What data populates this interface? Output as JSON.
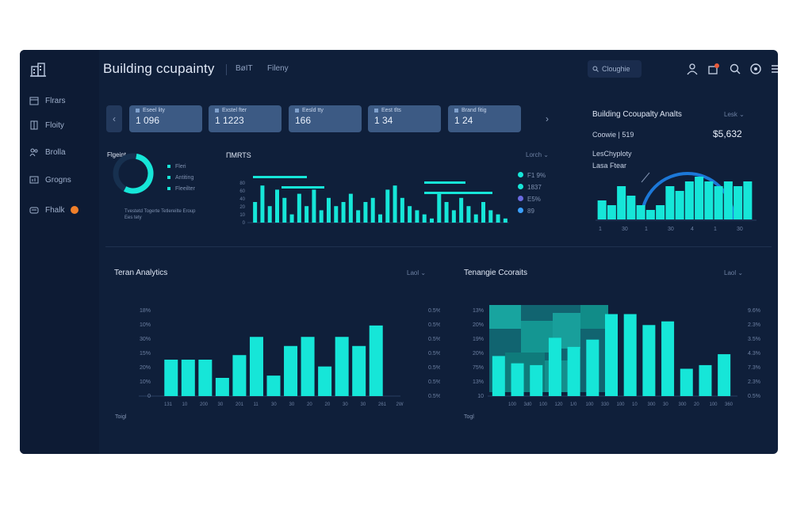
{
  "app": {
    "title": "Building ccupainty",
    "nav_links": [
      "BøIT",
      "Fileny"
    ],
    "search_placeholder": "Cloughie"
  },
  "sidebar": {
    "items": [
      {
        "label": "Flrars",
        "icon": "calendar-icon"
      },
      {
        "label": "Floity",
        "icon": "building-icon"
      },
      {
        "label": "Brolla",
        "icon": "people-icon"
      },
      {
        "label": "Grogns",
        "icon": "chart-icon"
      },
      {
        "label": "Fhalk",
        "icon": "inbox-icon",
        "badge": true
      }
    ]
  },
  "kpis": [
    {
      "label": "Eseel lity",
      "value": "1 096"
    },
    {
      "label": "Exstel fter",
      "value": "1 1223"
    },
    {
      "label": "Eesld tty",
      "value": "166"
    },
    {
      "label": "Eest tlts",
      "value": "1 34"
    },
    {
      "label": "Brand fitig",
      "value": "1 24"
    }
  ],
  "donut": {
    "title": "Flgeint",
    "value_fraction": 0.55,
    "legend": [
      "Fleri",
      "Antiting",
      "Fleeilter"
    ],
    "caption": "Tvestetd Togerte Tetlereilte Eroup Ees tety"
  },
  "mini_chart": {
    "title": "ПMRTS",
    "dropdown": "Lorch",
    "legend": [
      "F1 9%",
      "1837",
      "E5%",
      "89"
    ]
  },
  "analytics": {
    "title": "Building Ccoupalty Analts",
    "dropdown": "Lesk",
    "subtitle": "Coowie | 519",
    "value": "$5,632",
    "annotation": [
      "LesChyploty",
      "Lasa Ftear"
    ]
  },
  "tenant": {
    "title": "Teran Analytics",
    "dropdown": "Laol",
    "y_left": [
      "0",
      "10%",
      "20%",
      "15%",
      "30%",
      "10%",
      "18%"
    ],
    "y_right": [
      "0.5%",
      "0.5%",
      "0.5%",
      "0.5%",
      "0.5%",
      "0.5%",
      "0.5%"
    ],
    "x_labels": [
      "131",
      "10",
      "200",
      "30",
      "201",
      "11",
      "30",
      "30",
      "20",
      "20",
      "30",
      "30",
      "261",
      "2W"
    ],
    "footer": "Toigl"
  },
  "tenant_counts": {
    "title": "Tenangie Ccoraits",
    "dropdown": "Laol",
    "y_left": [
      "10",
      "13%",
      "75%",
      "20%",
      "19%",
      "20%",
      "13%"
    ],
    "y_right": [
      "0.5%",
      "2.3%",
      "7.3%",
      "4.3%",
      "3.5%",
      "2.3%",
      "9.6%"
    ],
    "x_labels": [
      "100",
      "3d0",
      "100",
      "120",
      "1/0",
      "100",
      "330",
      "100",
      "10",
      "300",
      "30",
      "300",
      "20",
      "100",
      "360"
    ],
    "footer": "Togl"
  },
  "chart_data": [
    {
      "type": "bar",
      "title": "ПMRTS",
      "values": [
        5,
        9,
        4,
        8,
        6,
        2,
        7,
        4,
        8,
        3,
        6,
        4,
        5,
        7,
        3,
        5,
        6,
        2,
        8,
        9,
        6,
        4,
        3,
        2,
        1,
        7,
        5,
        3,
        6,
        4,
        2,
        5,
        3,
        2,
        1
      ],
      "ylim": [
        0,
        10
      ]
    },
    {
      "type": "bar",
      "title": "Building Ccoupalty Analts",
      "values": [
        4,
        3,
        7,
        5,
        3,
        2,
        3,
        7,
        6,
        8,
        9,
        8,
        7,
        8,
        7,
        8
      ],
      "ylim": [
        0,
        10
      ]
    },
    {
      "type": "bar",
      "title": "Teran Analytics",
      "values": [
        16,
        16,
        16,
        8,
        18,
        26,
        9,
        22,
        26,
        13,
        26,
        22,
        31
      ],
      "ylim": [
        0,
        40
      ]
    },
    {
      "type": "bar",
      "title": "Tenangie Ccoraits",
      "values": [
        22,
        18,
        17,
        32,
        27,
        31,
        45,
        45,
        39,
        41,
        15,
        17,
        23
      ],
      "ylim": [
        0,
        50
      ]
    }
  ]
}
